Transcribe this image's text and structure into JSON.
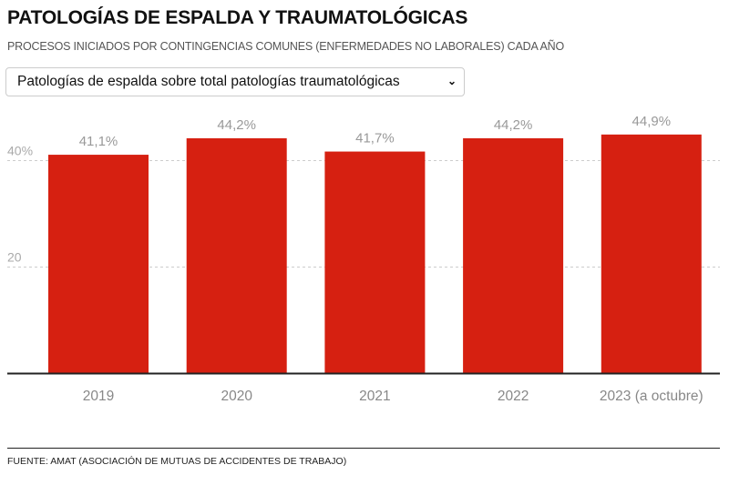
{
  "header": {
    "title": "PATOLOGÍAS DE ESPALDA Y TRAUMATOLÓGICAS",
    "subtitle": "PROCESOS INICIADOS POR CONTINGENCIAS COMUNES (ENFERMEDADES NO LABORALES) CADA AÑO"
  },
  "selector": {
    "value": "Patologías de espalda sobre total patologías traumatológicas"
  },
  "chart_data": {
    "type": "bar",
    "categories": [
      "2019",
      "2020",
      "2021",
      "2022",
      "2023 (a octubre)"
    ],
    "values": [
      41.1,
      44.2,
      41.7,
      44.2,
      44.9
    ],
    "data_labels": [
      "41,1%",
      "44,2%",
      "41,7%",
      "44,2%",
      "44,9%"
    ],
    "yticks": [
      {
        "value": 20,
        "label": "20"
      },
      {
        "value": 40,
        "label": "40%"
      }
    ],
    "ylim": [
      0,
      45
    ],
    "grid": true,
    "bar_color": "#d62011",
    "title": "PATOLOGÍAS DE ESPALDA Y TRAUMATOLÓGICAS",
    "xlabel": "",
    "ylabel": ""
  },
  "footer": {
    "source": "FUENTE: AMAT (ASOCIACIÓN DE MUTUAS DE ACCIDENTES DE TRABAJO)"
  }
}
